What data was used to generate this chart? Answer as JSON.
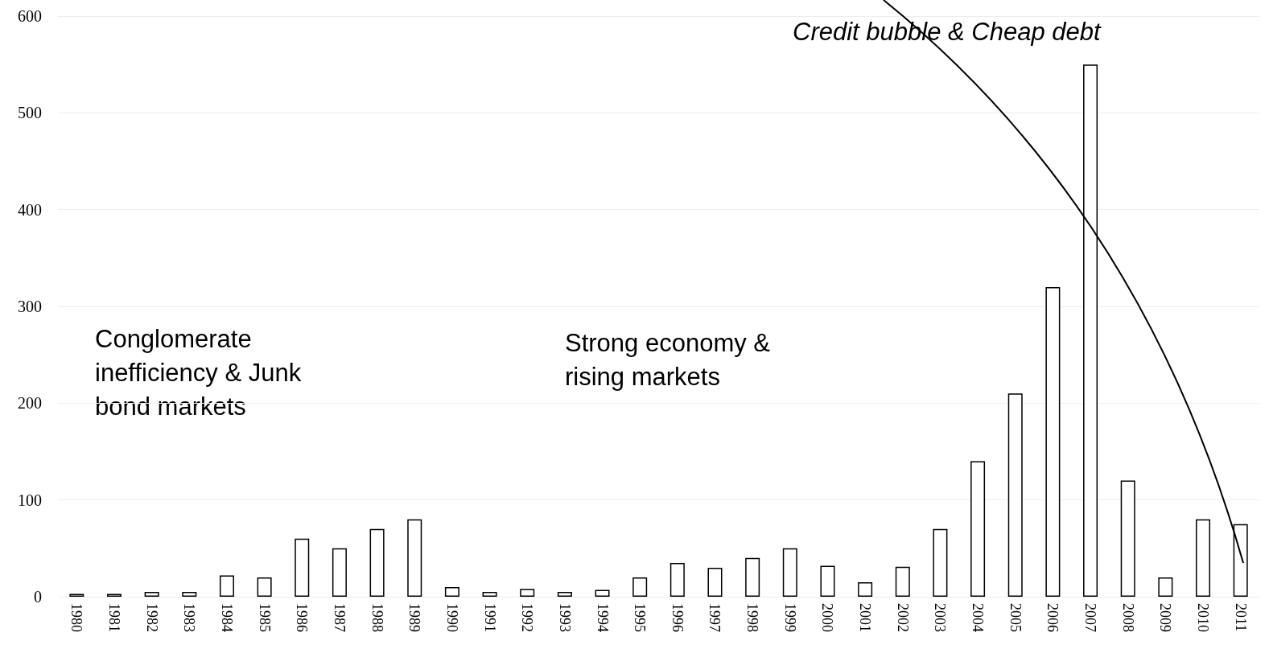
{
  "chart_data": {
    "type": "bar",
    "categories": [
      "1980",
      "1981",
      "1982",
      "1983",
      "1984",
      "1985",
      "1986",
      "1987",
      "1988",
      "1989",
      "1990",
      "1991",
      "1992",
      "1993",
      "1994",
      "1995",
      "1996",
      "1997",
      "1998",
      "1999",
      "2000",
      "2001",
      "2002",
      "2003",
      "2004",
      "2005",
      "2006",
      "2007",
      "2008",
      "2009",
      "2010",
      "2011"
    ],
    "values": [
      3,
      3,
      5,
      5,
      22,
      20,
      60,
      50,
      70,
      80,
      10,
      5,
      8,
      5,
      7,
      20,
      35,
      30,
      40,
      50,
      32,
      15,
      31,
      70,
      140,
      210,
      320,
      550,
      120,
      20,
      80,
      75
    ],
    "color": "#ffffff",
    "ylim": [
      0,
      600
    ],
    "yticks": [
      0,
      100,
      200,
      300,
      400,
      500,
      600
    ],
    "grid": "y",
    "annotations": [
      "Conglomerate\ninefficiency & Junk\nbond markets",
      "Strong economy &\nrising markets",
      "Credit bubble & Cheap debt"
    ]
  }
}
